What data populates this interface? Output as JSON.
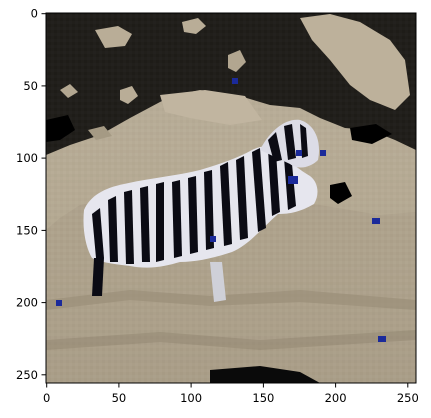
{
  "figure": {
    "image_description_icon": "zebra-photo-icon",
    "image_kind": "low-resolution photo of a zebra lying on sandy ground, black masked regions around it",
    "x_axis": {
      "ticks": [
        "0",
        "50",
        "100",
        "150",
        "200",
        "250"
      ],
      "range": [
        0,
        256
      ]
    },
    "y_axis": {
      "ticks": [
        "0",
        "50",
        "100",
        "150",
        "200",
        "250"
      ],
      "range": [
        0,
        256
      ]
    },
    "colors": {
      "background_mask": "#000000",
      "ground_light": "#b9ad97",
      "ground_dark": "#8f8470",
      "zebra_stripe_dark": "#0b0b14",
      "zebra_stripe_light": "#e7e7ef",
      "artifact_blue": "#1b2a9a",
      "axes_frame": "#000000"
    }
  }
}
